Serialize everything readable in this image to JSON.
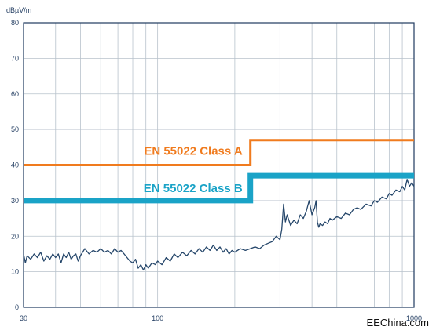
{
  "chart_data": {
    "type": "line",
    "ylabel": "dBµV/m",
    "xscale": "log",
    "xlim": [
      30,
      1000
    ],
    "ylim": [
      0,
      80
    ],
    "yticks": [
      0,
      10,
      20,
      30,
      40,
      50,
      60,
      70,
      80
    ],
    "xtick_labels": [
      {
        "v": 30,
        "t": "30"
      },
      {
        "v": 100,
        "t": "100"
      },
      {
        "v": 1000,
        "t": "1000"
      }
    ],
    "xgrid_minor": [
      40,
      50,
      60,
      70,
      80,
      90,
      200,
      300,
      400,
      500,
      600,
      700,
      800,
      900
    ],
    "grid": true,
    "colors": {
      "classA": "#f07b1e",
      "classB": "#1aa3c7",
      "noise": "#26476b",
      "grid": "#b8c2cc",
      "axis": "#1f3a5f"
    },
    "limits": [
      {
        "label": "EN 55022 Class A",
        "color": "#f07b1e",
        "points": [
          [
            30,
            40
          ],
          [
            230,
            40
          ],
          [
            230,
            47
          ],
          [
            1000,
            47
          ]
        ],
        "label_at": [
          230,
          44
        ]
      },
      {
        "label": "EN 55022 Class B",
        "color": "#1aa3c7",
        "points": [
          [
            30,
            30
          ],
          [
            230,
            30
          ],
          [
            230,
            37
          ],
          [
            1000,
            37
          ]
        ],
        "label_at": [
          230,
          33.5
        ]
      }
    ],
    "series": [
      {
        "values": [
          [
            30,
            15
          ],
          [
            30.5,
            12.5
          ],
          [
            31,
            14.5
          ],
          [
            32,
            13.5
          ],
          [
            33,
            15
          ],
          [
            34,
            14
          ],
          [
            35,
            15.5
          ],
          [
            36,
            13
          ],
          [
            37,
            14.5
          ],
          [
            38,
            13.5
          ],
          [
            39,
            15
          ],
          [
            40,
            14
          ],
          [
            41,
            15
          ],
          [
            42,
            12.5
          ],
          [
            43,
            15
          ],
          [
            44,
            14
          ],
          [
            45,
            15.5
          ],
          [
            46,
            13.5
          ],
          [
            47,
            14.5
          ],
          [
            48,
            15
          ],
          [
            49,
            13
          ],
          [
            50,
            14.5
          ],
          [
            52,
            16.5
          ],
          [
            54,
            15
          ],
          [
            56,
            16
          ],
          [
            58,
            15.5
          ],
          [
            60,
            16.5
          ],
          [
            62,
            15.5
          ],
          [
            64,
            16
          ],
          [
            66,
            15
          ],
          [
            68,
            16.5
          ],
          [
            70,
            15.5
          ],
          [
            72,
            16
          ],
          [
            74,
            15
          ],
          [
            76,
            14
          ],
          [
            78,
            13
          ],
          [
            80,
            12.5
          ],
          [
            82,
            13.5
          ],
          [
            84,
            11
          ],
          [
            86,
            12
          ],
          [
            88,
            10.5
          ],
          [
            90,
            12
          ],
          [
            92,
            11
          ],
          [
            95,
            12.5
          ],
          [
            98,
            12
          ],
          [
            100,
            13
          ],
          [
            104,
            12
          ],
          [
            108,
            14
          ],
          [
            112,
            13
          ],
          [
            116,
            15
          ],
          [
            120,
            14
          ],
          [
            125,
            15.5
          ],
          [
            130,
            14.5
          ],
          [
            135,
            16
          ],
          [
            140,
            15
          ],
          [
            145,
            16.5
          ],
          [
            150,
            15.5
          ],
          [
            155,
            17
          ],
          [
            160,
            16
          ],
          [
            165,
            17.5
          ],
          [
            170,
            16
          ],
          [
            175,
            17
          ],
          [
            180,
            15.5
          ],
          [
            185,
            16.5
          ],
          [
            190,
            15
          ],
          [
            195,
            16
          ],
          [
            200,
            15.5
          ],
          [
            210,
            16.5
          ],
          [
            220,
            16
          ],
          [
            230,
            16.5
          ],
          [
            240,
            17
          ],
          [
            250,
            16.5
          ],
          [
            260,
            17.5
          ],
          [
            270,
            18
          ],
          [
            280,
            18.5
          ],
          [
            290,
            20
          ],
          [
            300,
            19
          ],
          [
            305,
            22
          ],
          [
            310,
            29
          ],
          [
            315,
            24
          ],
          [
            320,
            26
          ],
          [
            330,
            23
          ],
          [
            340,
            24.5
          ],
          [
            350,
            23.5
          ],
          [
            360,
            26
          ],
          [
            370,
            25
          ],
          [
            380,
            27
          ],
          [
            390,
            30
          ],
          [
            400,
            26
          ],
          [
            410,
            28
          ],
          [
            415,
            30
          ],
          [
            420,
            24
          ],
          [
            425,
            22.5
          ],
          [
            430,
            23.5
          ],
          [
            440,
            23
          ],
          [
            450,
            24
          ],
          [
            460,
            23.5
          ],
          [
            470,
            25
          ],
          [
            480,
            24.5
          ],
          [
            500,
            25.5
          ],
          [
            520,
            25
          ],
          [
            540,
            26.5
          ],
          [
            560,
            26
          ],
          [
            580,
            27.5
          ],
          [
            600,
            28
          ],
          [
            620,
            27.5
          ],
          [
            650,
            29
          ],
          [
            680,
            28.5
          ],
          [
            700,
            30
          ],
          [
            720,
            29.5
          ],
          [
            750,
            31
          ],
          [
            780,
            30.5
          ],
          [
            800,
            32
          ],
          [
            820,
            31.5
          ],
          [
            850,
            33
          ],
          [
            880,
            32.5
          ],
          [
            900,
            34
          ],
          [
            920,
            33
          ],
          [
            940,
            36
          ],
          [
            960,
            34
          ],
          [
            980,
            35
          ],
          [
            1000,
            34
          ]
        ]
      }
    ]
  },
  "watermark": "EEChina.com"
}
